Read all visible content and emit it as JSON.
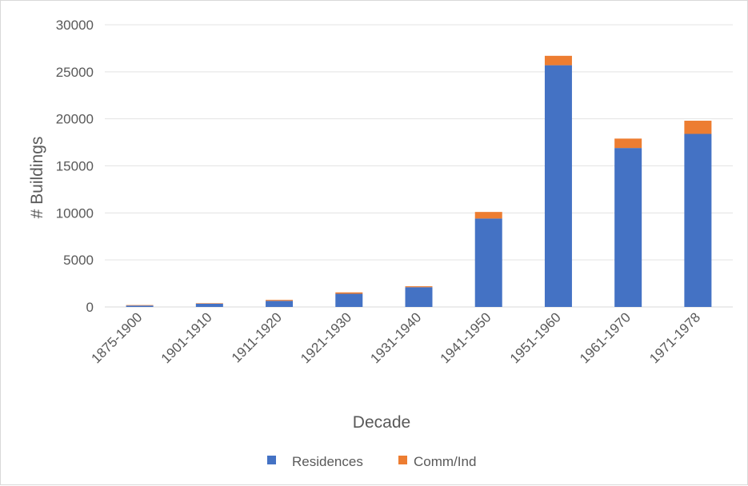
{
  "chart_data": {
    "type": "bar",
    "stacked": true,
    "title": "",
    "xlabel": "Decade",
    "ylabel": "# Buildings",
    "ylim": [
      0,
      30000
    ],
    "yticks": [
      0,
      5000,
      10000,
      15000,
      20000,
      25000,
      30000
    ],
    "grid": true,
    "legend_position": "bottom",
    "categories": [
      "1875-1900",
      "1901-1910",
      "1911-1920",
      "1921-1930",
      "1931-1940",
      "1941-1950",
      "1951-1960",
      "1961-1970",
      "1971-1978"
    ],
    "series": [
      {
        "name": "Residences",
        "color": "#4472c4",
        "values": [
          150,
          350,
          650,
          1400,
          2100,
          9400,
          25700,
          16900,
          18400
        ]
      },
      {
        "name": "Comm/Ind",
        "color": "#ed7d31",
        "values": [
          50,
          50,
          100,
          150,
          100,
          700,
          1000,
          1000,
          1400
        ]
      }
    ]
  }
}
